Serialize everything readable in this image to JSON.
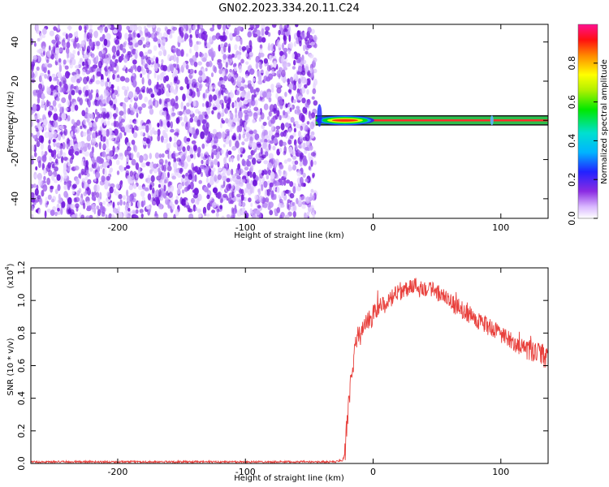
{
  "title": "GN02.2023.334.20.11.C24",
  "colorbar": {
    "label": "Normalized spectral amplitude",
    "ticks": [
      "0.0",
      "0.2",
      "0.4",
      "0.6",
      "0.8"
    ]
  },
  "chart_data": [
    {
      "type": "heatmap",
      "xlabel": "Height of straight line (km)",
      "ylabel": "Frequency (Hz)",
      "xlim": [
        -268,
        137
      ],
      "ylim": [
        -50,
        49
      ],
      "xticks": [
        -200,
        -100,
        0,
        100
      ],
      "xtick_labels": [
        "-200",
        "-100",
        "0",
        "100"
      ],
      "yticks": [
        -40,
        -20,
        0,
        20,
        40
      ],
      "ytick_labels": [
        "-40",
        "-20",
        "0",
        "20",
        "40"
      ],
      "value_range": [
        0,
        1
      ],
      "regions": [
        {
          "x_from": -268,
          "x_to": -45,
          "freq_from": -50,
          "freq_to": 49,
          "pattern": "broadband noise",
          "amplitude": [
            0.0,
            0.2
          ]
        },
        {
          "x_from": -45,
          "x_to": 137,
          "freq_from": -2,
          "freq_to": 2,
          "pattern": "narrow band at 0 Hz",
          "amplitude": [
            0.0,
            1.0
          ]
        },
        {
          "x_from": -45,
          "x_to": 137,
          "freq_from": -50,
          "freq_to": 49,
          "pattern": "empty",
          "amplitude": [
            0.0,
            0.0
          ]
        }
      ]
    },
    {
      "type": "line",
      "xlabel": "Height of straight line (km)",
      "ylabel": "SNR (10 * v/v)",
      "y_multiplier": "(x10",
      "y_multiplier_exp": "4",
      "y_multiplier_close": ")",
      "xlim": [
        -268,
        137
      ],
      "ylim": [
        0,
        1.2
      ],
      "xticks": [
        -200,
        -100,
        0,
        100
      ],
      "xtick_labels": [
        "-200",
        "-100",
        "0",
        "100"
      ],
      "yticks": [
        0,
        0.2,
        0.4,
        0.6,
        0.8,
        1.0,
        1.2
      ],
      "ytick_labels": [
        "0.0",
        "0.2",
        "0.4",
        "0.6",
        "0.8",
        "1.0",
        "1.2"
      ],
      "series": [
        {
          "color": "#e8413d",
          "x": [
            -268,
            -240,
            -200,
            -150,
            -100,
            -50,
            -30,
            -24,
            -22,
            -20,
            -18,
            -16,
            -14,
            -12,
            -10,
            -8,
            -5,
            -2,
            0,
            5,
            10,
            15,
            20,
            25,
            30,
            35,
            40,
            45,
            50,
            55,
            60,
            70,
            80,
            90,
            100,
            110,
            120,
            130,
            137
          ],
          "y": [
            0.01,
            0.01,
            0.01,
            0.01,
            0.01,
            0.01,
            0.01,
            0.02,
            0.06,
            0.28,
            0.48,
            0.6,
            0.72,
            0.8,
            0.78,
            0.82,
            0.88,
            0.86,
            0.92,
            0.96,
            0.98,
            1.02,
            1.05,
            1.07,
            1.09,
            1.09,
            1.08,
            1.07,
            1.05,
            1.02,
            0.99,
            0.94,
            0.89,
            0.84,
            0.79,
            0.74,
            0.7,
            0.67,
            0.65
          ]
        }
      ]
    }
  ]
}
